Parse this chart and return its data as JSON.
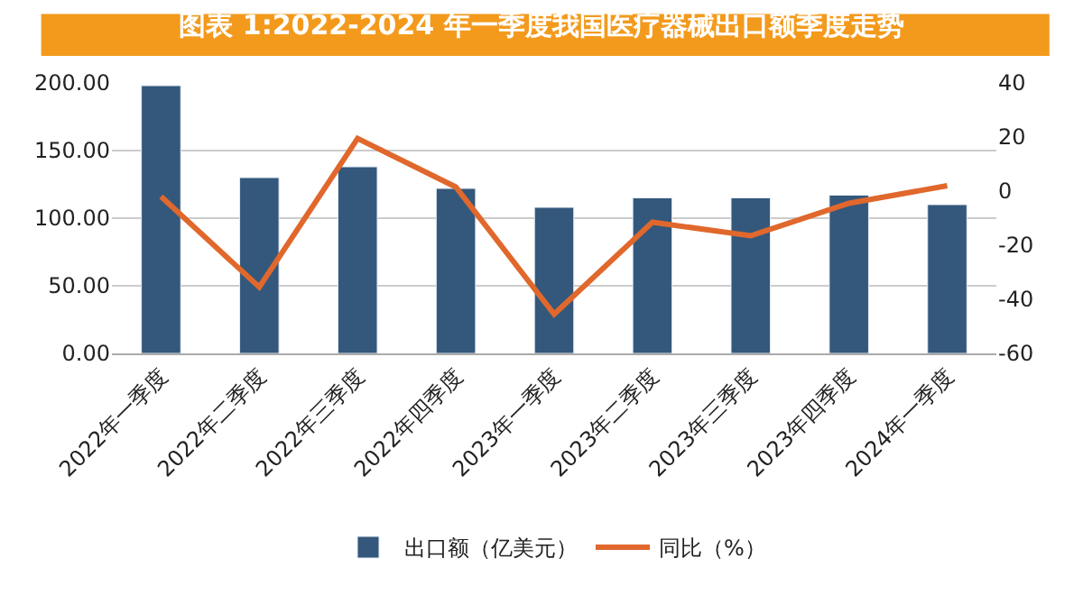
{
  "chart_data": {
    "type": "bar",
    "title": "图表 1:2022-2024 年一季度我国医疗器械出口额季度走势",
    "categories": [
      "2022年一季度",
      "2022年二季度",
      "2022年三季度",
      "2022年四季度",
      "2023年一季度",
      "2023年二季度",
      "2023年三季度",
      "2023年四季度",
      "2024年一季度"
    ],
    "series": [
      {
        "name": "出口额（亿美元）",
        "color": "#34587b",
        "values": [
          198,
          130,
          138,
          122,
          108,
          115,
          115,
          117,
          110
        ]
      },
      {
        "name": "同比（%）",
        "color": "#e0682c",
        "type": "line",
        "axis": "y2",
        "values": [
          -2,
          -35.5,
          19.5,
          1.5,
          -45.5,
          -11.5,
          -16.5,
          -4.5,
          2
        ]
      }
    ],
    "ylim": [
      0,
      200
    ],
    "yticks": [
      {
        "value": 0,
        "label": "0.00"
      },
      {
        "value": 50,
        "label": "50.00"
      },
      {
        "value": 100,
        "label": "100.00"
      },
      {
        "value": 150,
        "label": "150.00"
      },
      {
        "value": 200,
        "label": "200.00"
      }
    ],
    "y2lim": [
      -60,
      40
    ],
    "y2ticks": [
      -60,
      -40,
      -20,
      0,
      20,
      40
    ],
    "grid": "y",
    "legend": "bottom",
    "marker": "none",
    "line_style": "solid"
  }
}
